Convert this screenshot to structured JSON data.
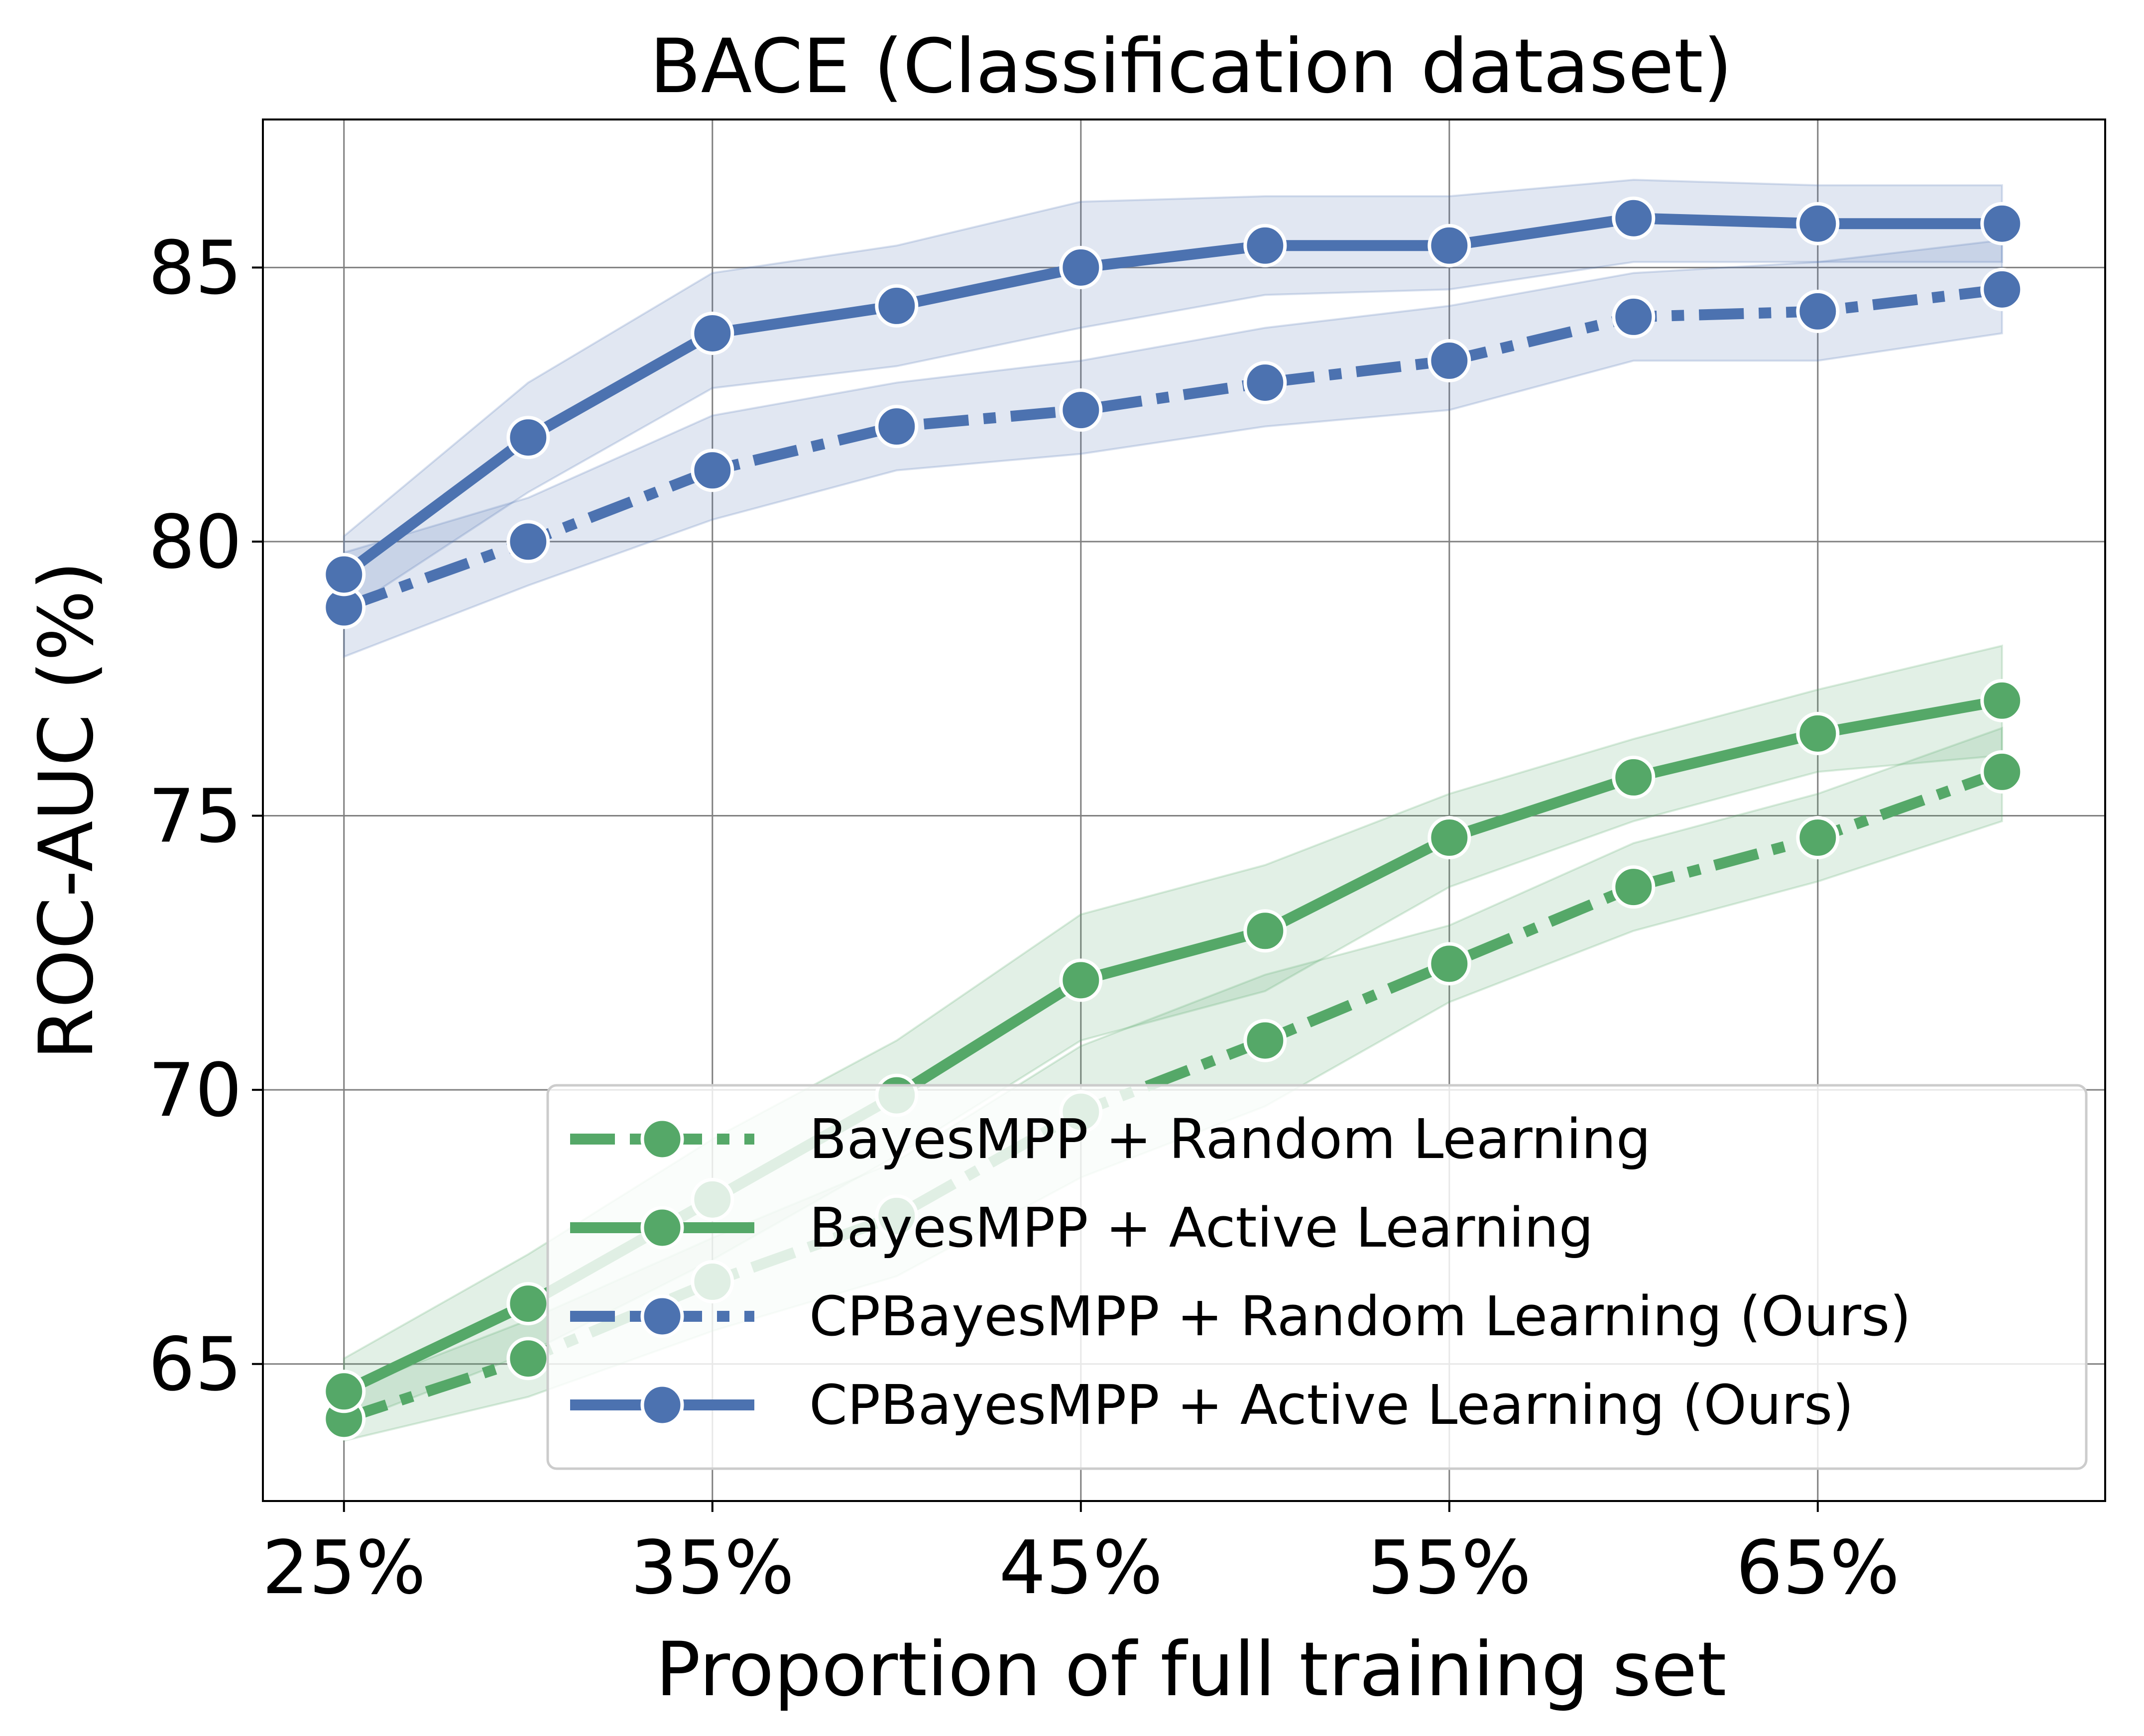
{
  "chart_data": {
    "type": "line",
    "title": "BACE (Classification dataset)",
    "xlabel": "Proportion of full training set",
    "ylabel": "ROC-AUC (%)",
    "x": [
      25,
      30,
      35,
      40,
      45,
      50,
      55,
      60,
      65,
      70
    ],
    "x_ticks": [
      25,
      35,
      45,
      55,
      65
    ],
    "x_tick_labels": [
      "25%",
      "35%",
      "45%",
      "55%",
      "65%"
    ],
    "xlim": [
      22.8,
      72.8
    ],
    "y_ticks": [
      65,
      70,
      75,
      80,
      85
    ],
    "y_tick_labels": [
      "65",
      "70",
      "75",
      "80",
      "85"
    ],
    "ylim": [
      62.5,
      87.7
    ],
    "grid": true,
    "legend_position": "lower right",
    "series": [
      {
        "name": "BayesMPP + Random Learning",
        "color": "#55a868",
        "linestyle": "dashdot",
        "values": [
          64.0,
          65.1,
          66.5,
          67.7,
          69.6,
          70.9,
          72.3,
          73.7,
          74.6,
          75.8
        ],
        "band_lower": [
          63.6,
          64.4,
          65.6,
          66.6,
          68.4,
          69.7,
          71.6,
          72.9,
          73.8,
          74.9
        ],
        "band_upper": [
          64.5,
          65.8,
          67.3,
          68.7,
          70.8,
          72.1,
          73.0,
          74.5,
          75.4,
          76.6
        ]
      },
      {
        "name": "BayesMPP + Active Learning",
        "color": "#55a868",
        "linestyle": "solid",
        "values": [
          64.5,
          66.1,
          68.0,
          69.9,
          72.0,
          72.9,
          74.6,
          75.7,
          76.5,
          77.1
        ],
        "band_lower": [
          63.9,
          65.2,
          66.9,
          68.8,
          70.9,
          71.8,
          73.7,
          74.9,
          75.8,
          76.1
        ],
        "band_upper": [
          65.1,
          67.0,
          69.1,
          70.9,
          73.2,
          74.1,
          75.4,
          76.4,
          77.3,
          78.1
        ]
      },
      {
        "name": "CPBayesMPP + Random Learning (Ours)",
        "color": "#4c72b0",
        "linestyle": "dashdot",
        "values": [
          78.8,
          80.0,
          81.3,
          82.1,
          82.4,
          82.9,
          83.3,
          84.1,
          84.2,
          84.6
        ],
        "band_lower": [
          77.9,
          79.2,
          80.4,
          81.3,
          81.6,
          82.1,
          82.4,
          83.3,
          83.3,
          83.8
        ],
        "band_upper": [
          79.8,
          80.8,
          82.3,
          82.9,
          83.3,
          83.9,
          84.3,
          84.9,
          85.1,
          85.5
        ]
      },
      {
        "name": "CPBayesMPP + Active Learning (Ours)",
        "color": "#4c72b0",
        "linestyle": "solid",
        "values": [
          79.4,
          81.9,
          83.8,
          84.3,
          85.0,
          85.4,
          85.4,
          85.9,
          85.8,
          85.8
        ],
        "band_lower": [
          78.7,
          80.9,
          82.8,
          83.2,
          83.9,
          84.5,
          84.6,
          85.1,
          85.1,
          85.1
        ],
        "band_upper": [
          80.1,
          82.9,
          84.9,
          85.4,
          86.2,
          86.3,
          86.3,
          86.6,
          86.5,
          86.5
        ]
      }
    ]
  }
}
